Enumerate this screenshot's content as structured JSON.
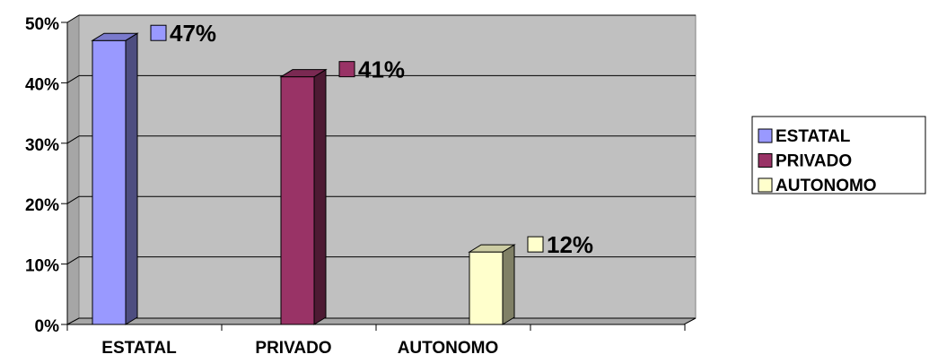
{
  "chart_data": {
    "type": "bar",
    "categories": [
      "ESTATAL",
      "PRIVADO",
      "AUTONOMO"
    ],
    "values": [
      47,
      41,
      12
    ],
    "value_labels": [
      "47%",
      "41%",
      "12%"
    ],
    "colors": [
      "#9999ff",
      "#993366",
      "#ffffcc"
    ],
    "ylim": [
      0,
      50
    ],
    "yticks": [
      {
        "value": 0,
        "label": "0%"
      },
      {
        "value": 10,
        "label": "10%"
      },
      {
        "value": 20,
        "label": "20%"
      },
      {
        "value": 30,
        "label": "30%"
      },
      {
        "value": 40,
        "label": "40%"
      },
      {
        "value": 50,
        "label": "50%"
      }
    ],
    "grid": true,
    "legend": "right"
  }
}
